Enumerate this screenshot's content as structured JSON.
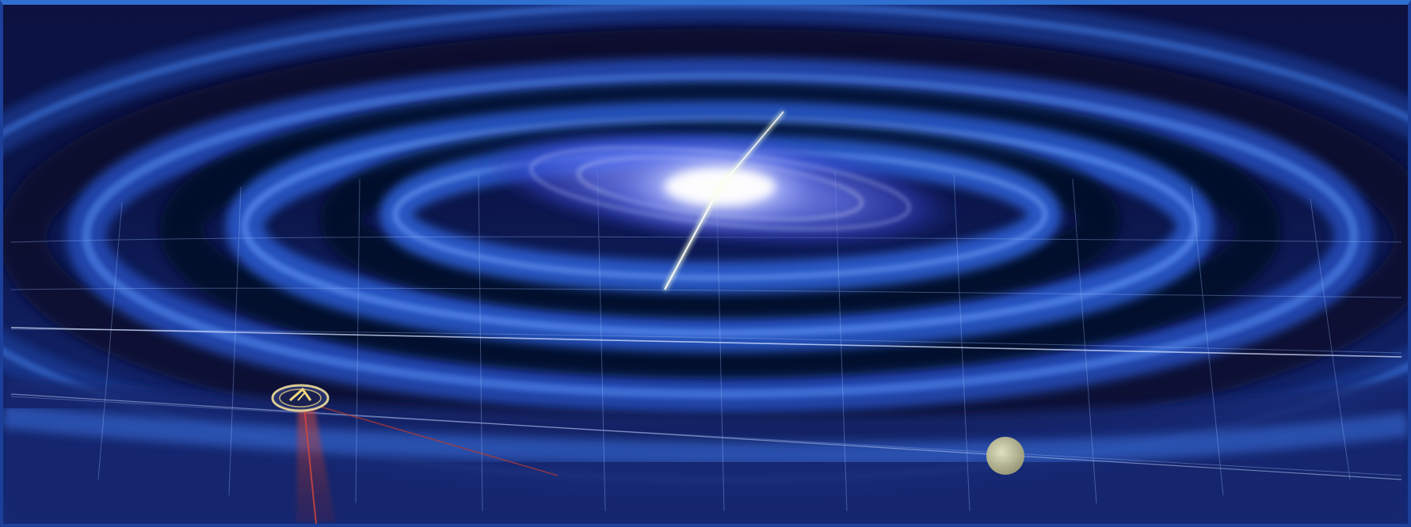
{
  "scene": {
    "subject": "gravitational-wave-illustration",
    "colors": {
      "background_top": "#0c1140",
      "background_bottom": "#152a7a",
      "wave_crest": "#3f7ce6",
      "wave_trough": "#070b2c",
      "grid_line": "#9fc0ff",
      "galaxy_core": "#ffffff",
      "galaxy_disk": "#7a8cff",
      "laser_beam": "#c0392b",
      "detector_ring": "#e6d59a",
      "planet": "#d9d7a3"
    },
    "elements": [
      "spiral-galaxy",
      "spacetime-ripple-rings",
      "spacetime-grid",
      "detector-satellite",
      "laser-beam",
      "small-planet"
    ]
  }
}
